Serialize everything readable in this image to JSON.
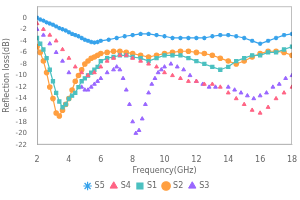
{
  "chart_data": {
    "type": "line",
    "xlabel": "Frequency(GHz)",
    "ylabel": "Reflection loss(dB)",
    "xlim": [
      2,
      18
    ],
    "ylim": [
      -22,
      2
    ],
    "xticks": [
      2,
      4,
      6,
      8,
      10,
      12,
      14,
      16,
      18
    ],
    "yticks": [
      0,
      -2,
      -4,
      -6,
      -8,
      -10,
      -12,
      -14,
      -16,
      -18,
      -20,
      -22
    ],
    "grid": false,
    "legend": "bottom",
    "series": [
      {
        "name": "S5",
        "marker": "star",
        "line_style": "solid",
        "x": [
          2.0,
          2.2,
          2.4,
          2.6,
          2.8,
          3.0,
          3.2,
          3.4,
          3.6,
          3.8,
          4.0,
          4.2,
          4.4,
          4.6,
          4.8,
          5.0,
          5.2,
          5.4,
          5.6,
          5.8,
          6.0,
          6.5,
          7.0,
          7.5,
          8.0,
          8.5,
          9.0,
          9.5,
          10.0,
          10.5,
          11.0,
          11.5,
          12.0,
          12.5,
          13.0,
          13.5,
          14.0,
          14.5,
          15.0,
          15.5,
          16.0,
          16.5,
          17.0,
          17.5,
          18.0
        ],
        "values": [
          0.0,
          -0.3,
          -0.5,
          -0.8,
          -1.0,
          -1.2,
          -1.5,
          -1.8,
          -2.0,
          -2.2,
          -2.5,
          -2.8,
          -3.0,
          -3.2,
          -3.5,
          -3.8,
          -4.0,
          -4.2,
          -4.3,
          -4.2,
          -4.0,
          -3.8,
          -3.5,
          -3.2,
          -3.0,
          -2.8,
          -2.8,
          -3.0,
          -3.2,
          -3.5,
          -3.5,
          -3.5,
          -3.5,
          -3.5,
          -3.2,
          -3.0,
          -3.0,
          -3.2,
          -3.5,
          -4.0,
          -4.5,
          -4.0,
          -3.5,
          -3.0,
          -2.8
        ]
      },
      {
        "name": "S4",
        "marker": "triangle",
        "line_style": "none",
        "x": [
          2.0,
          2.4,
          2.8,
          3.2,
          3.6,
          4.0,
          4.4,
          4.8,
          5.2,
          5.6,
          6.0,
          6.4,
          6.8,
          7.2,
          7.6,
          8.0,
          8.5,
          9.0,
          9.5,
          10.0,
          10.5,
          11.0,
          11.5,
          12.0,
          12.5,
          13.0,
          13.5,
          14.0,
          14.5,
          15.0,
          15.5,
          16.0,
          16.5,
          17.0,
          17.5,
          18.0
        ],
        "values": [
          -1.0,
          -2.0,
          -3.0,
          -4.0,
          -5.5,
          -7.0,
          -8.5,
          -9.5,
          -10.0,
          -9.5,
          -8.5,
          -7.5,
          -7.0,
          -6.5,
          -6.5,
          -7.0,
          -7.5,
          -8.0,
          -8.5,
          -9.5,
          -10.0,
          -10.5,
          -11.0,
          -11.0,
          -11.5,
          -11.5,
          -12.0,
          -13.0,
          -14.0,
          -15.0,
          -16.0,
          -16.5,
          -15.5,
          -14.0,
          -13.0,
          -12.0
        ]
      },
      {
        "name": "S1",
        "marker": "square",
        "line_style": "solid",
        "x": [
          2.0,
          2.2,
          2.4,
          2.6,
          2.8,
          3.0,
          3.2,
          3.4,
          3.6,
          3.8,
          4.0,
          4.2,
          4.4,
          4.6,
          4.8,
          5.0,
          5.2,
          5.4,
          5.6,
          5.8,
          6.0,
          6.4,
          6.8,
          7.2,
          7.6,
          8.0,
          8.5,
          9.0,
          9.5,
          10.0,
          10.5,
          11.0,
          11.5,
          12.0,
          12.5,
          13.0,
          13.5,
          14.0,
          14.5,
          15.0,
          15.5,
          16.0,
          16.5,
          17.0,
          17.5,
          18.0
        ],
        "values": [
          -3.5,
          -4.5,
          -5.5,
          -7.0,
          -9.0,
          -11.0,
          -13.0,
          -14.5,
          -15.5,
          -15.0,
          -14.0,
          -13.5,
          -13.0,
          -12.0,
          -11.0,
          -10.5,
          -10.0,
          -9.5,
          -9.0,
          -8.5,
          -7.5,
          -7.0,
          -6.8,
          -6.5,
          -6.5,
          -6.8,
          -7.0,
          -7.5,
          -7.0,
          -6.5,
          -6.5,
          -6.5,
          -7.0,
          -7.5,
          -8.0,
          -8.5,
          -9.0,
          -8.5,
          -7.5,
          -7.0,
          -6.5,
          -6.5,
          -6.0,
          -6.0,
          -5.5,
          -5.0
        ]
      },
      {
        "name": "S2",
        "marker": "circle",
        "line_style": "solid",
        "x": [
          2.0,
          2.2,
          2.4,
          2.6,
          2.8,
          3.0,
          3.2,
          3.4,
          3.6,
          3.8,
          4.0,
          4.2,
          4.4,
          4.6,
          4.8,
          5.0,
          5.2,
          5.4,
          5.6,
          5.8,
          6.0,
          6.4,
          6.8,
          7.2,
          7.6,
          8.0,
          8.5,
          9.0,
          9.5,
          10.0,
          10.5,
          11.0,
          11.5,
          12.0,
          12.5,
          13.0,
          13.5,
          14.0,
          14.5,
          15.0,
          15.5,
          16.0,
          16.5,
          17.0,
          17.5,
          18.0
        ],
        "values": [
          -5.0,
          -6.0,
          -7.5,
          -9.5,
          -12.0,
          -14.0,
          -16.5,
          -17.0,
          -16.0,
          -15.0,
          -14.0,
          -12.5,
          -11.0,
          -10.0,
          -9.0,
          -8.0,
          -7.5,
          -7.0,
          -6.8,
          -6.5,
          -6.2,
          -6.0,
          -5.8,
          -5.8,
          -6.0,
          -6.2,
          -6.5,
          -6.8,
          -6.5,
          -6.2,
          -6.0,
          -5.8,
          -5.8,
          -6.0,
          -6.2,
          -6.5,
          -7.0,
          -7.5,
          -8.0,
          -7.5,
          -6.8,
          -6.2,
          -5.8,
          -5.8,
          -6.0,
          -6.5
        ]
      },
      {
        "name": "S3",
        "marker": "triangle",
        "line_style": "none",
        "x": [
          2.0,
          2.4,
          2.8,
          3.2,
          3.6,
          4.0,
          4.4,
          4.8,
          5.0,
          5.2,
          5.4,
          5.6,
          5.8,
          6.0,
          6.4,
          6.8,
          7.0,
          7.2,
          7.4,
          7.6,
          7.8,
          8.0,
          8.2,
          8.4,
          8.6,
          8.8,
          9.0,
          9.2,
          9.4,
          9.6,
          9.8,
          10.0,
          10.4,
          10.8,
          11.2,
          11.6,
          12.0,
          12.4,
          12.8,
          13.2,
          14.0,
          14.4,
          14.8,
          15.2,
          15.6,
          16.0,
          16.4,
          16.8,
          17.2,
          17.6,
          18.0
        ],
        "values": [
          -2.0,
          -3.0,
          -4.5,
          -6.0,
          -7.5,
          -9.5,
          -11.0,
          -12.0,
          -12.5,
          -12.5,
          -12.0,
          -11.5,
          -11.0,
          -10.5,
          -9.5,
          -9.0,
          -8.5,
          -9.0,
          -10.5,
          -12.5,
          -15.0,
          -18.0,
          -20.0,
          -19.5,
          -17.5,
          -15.0,
          -13.0,
          -11.5,
          -10.5,
          -9.5,
          -9.0,
          -8.5,
          -8.0,
          -8.5,
          -9.0,
          -10.0,
          -11.0,
          -11.5,
          -12.0,
          -12.0,
          -12.0,
          -12.5,
          -13.0,
          -13.5,
          -14.0,
          -13.5,
          -13.0,
          -12.0,
          -11.5,
          -10.5,
          -10.0
        ]
      }
    ]
  }
}
